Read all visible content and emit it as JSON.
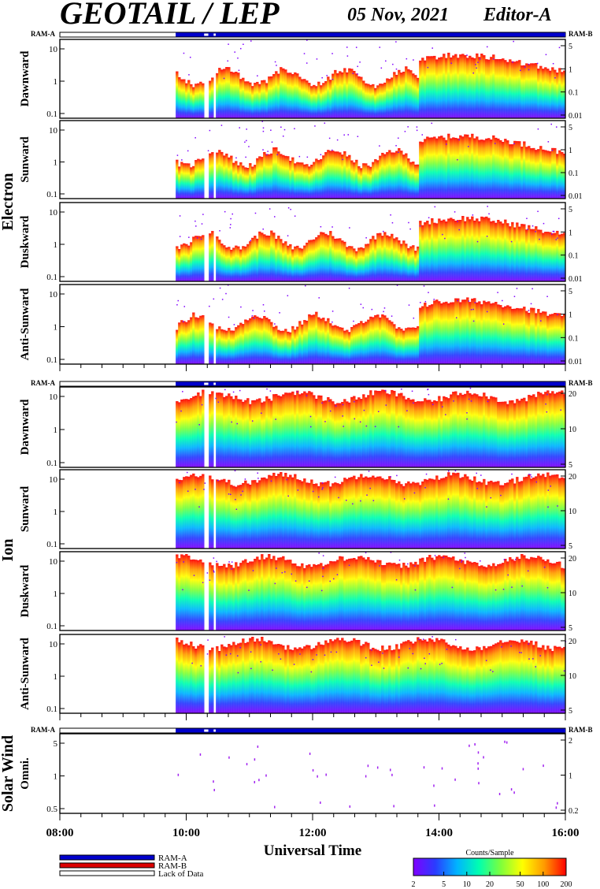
{
  "header": {
    "title": "GEOTAIL / LEP",
    "date": "05 Nov, 2021",
    "editor": "Editor-A"
  },
  "ram": {
    "a": "RAM-A",
    "b": "RAM-B"
  },
  "groups": [
    {
      "name": "Electron",
      "panels": [
        "Dawnward",
        "Sunward",
        "Duskward",
        "Anti-Sunward"
      ]
    },
    {
      "name": "Ion",
      "panels": [
        "Dawnward",
        "Sunward",
        "Duskward",
        "Anti-Sunward"
      ]
    },
    {
      "name": "Solar Wind",
      "panels": [
        "Omni."
      ]
    }
  ],
  "ticks": {
    "electron_left": [
      "10",
      "1",
      "0.1"
    ],
    "electron_right": [
      "5",
      "1",
      "0.1",
      "0.01"
    ],
    "ion_left": [
      "10",
      "1",
      "0.1"
    ],
    "ion_right": [
      "20",
      "10",
      "5"
    ],
    "sw_left": [
      "5",
      "1",
      "0.5"
    ],
    "sw_right": [
      "2",
      "1",
      "0.2"
    ]
  },
  "chart_data": {
    "type": "heatmap",
    "xlabel": "Universal Time",
    "x_ticks": [
      "08:00",
      "10:00",
      "12:00",
      "14:00",
      "16:00"
    ],
    "x_range": [
      "08:00",
      "16:00"
    ],
    "data_start": "09:50",
    "data_gaps": [
      [
        "10:17",
        "10:21"
      ],
      [
        "10:26",
        "10:28"
      ]
    ],
    "colorbar": {
      "title": "Counts/Sample",
      "ticks": [
        "2",
        "5",
        "10",
        "20",
        "50",
        "100",
        "200"
      ],
      "colors": [
        "#7f00ff",
        "#2a3cff",
        "#00b4ff",
        "#00ffb0",
        "#7dff3c",
        "#ffff00",
        "#ff9a00",
        "#ff0000"
      ]
    },
    "legend": [
      {
        "label": "RAM-A",
        "color": "#0000cc"
      },
      {
        "label": "RAM-B",
        "color": "#dd0000"
      },
      {
        "label": "Lack of Data",
        "color": "#ffffff"
      }
    ]
  }
}
